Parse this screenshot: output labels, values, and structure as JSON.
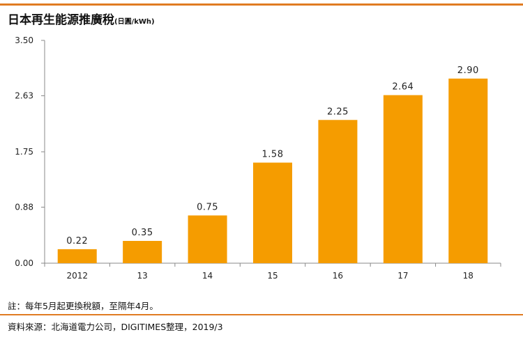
{
  "header": {
    "title": "日本再生能源推廣稅",
    "unit": "(日圓/kWh)"
  },
  "chart_data": {
    "type": "bar",
    "categories": [
      "2012",
      "13",
      "14",
      "15",
      "16",
      "17",
      "18"
    ],
    "values": [
      0.22,
      0.35,
      0.75,
      1.58,
      2.25,
      2.64,
      2.9
    ],
    "data_labels": [
      "0.22",
      "0.35",
      "0.75",
      "1.58",
      "2.25",
      "2.64",
      "2.90"
    ],
    "y_ticks": [
      0.0,
      0.88,
      1.75,
      2.63,
      3.5
    ],
    "y_tick_labels": [
      "0.00",
      "0.88",
      "1.75",
      "2.63",
      "3.50"
    ],
    "ylim": [
      0,
      3.5
    ],
    "bar_color": "#f59c00",
    "grid": false,
    "title": "日本再生能源推廣稅",
    "xlabel": "",
    "ylabel": "(日圓/kWh)"
  },
  "footer": {
    "note": "註：每年5月起更換稅額，至隔年4月。",
    "source": "資料來源：北海道電力公司，DIGITIMES整理，2019/3"
  },
  "colors": {
    "accent_rule": "#e07b22",
    "axis": "#888888"
  }
}
